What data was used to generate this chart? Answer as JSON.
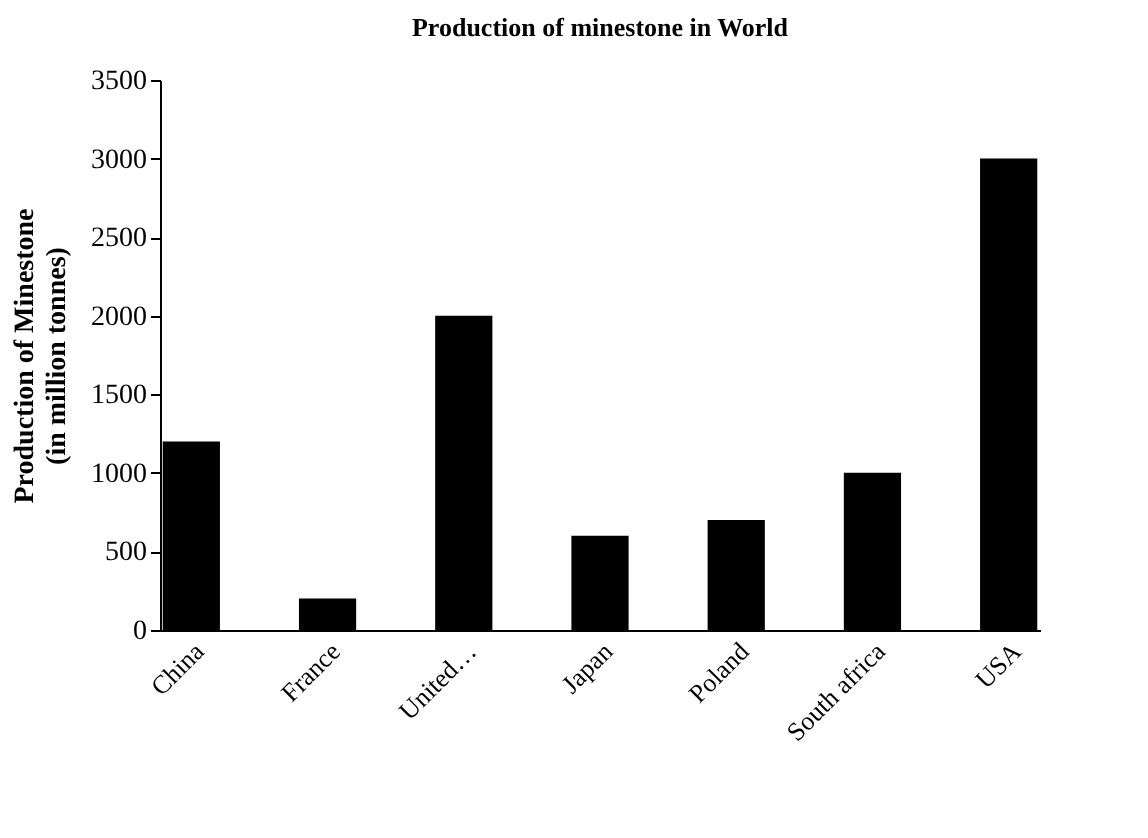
{
  "chart_data": {
    "type": "bar",
    "title": "Production of minestone in World",
    "ylabel": "Production of Minestone\n(in million tonnes)",
    "categories": [
      "China",
      "France",
      "United…",
      "Japan",
      "Poland",
      "South africa",
      "USA"
    ],
    "values": [
      1200,
      200,
      2000,
      600,
      700,
      1000,
      3000
    ],
    "color": "#000000",
    "ylim": [
      0,
      3500
    ],
    "yticks": [
      0,
      500,
      1000,
      1500,
      2000,
      2500,
      3000,
      3500
    ],
    "grid": false,
    "legend": false
  }
}
